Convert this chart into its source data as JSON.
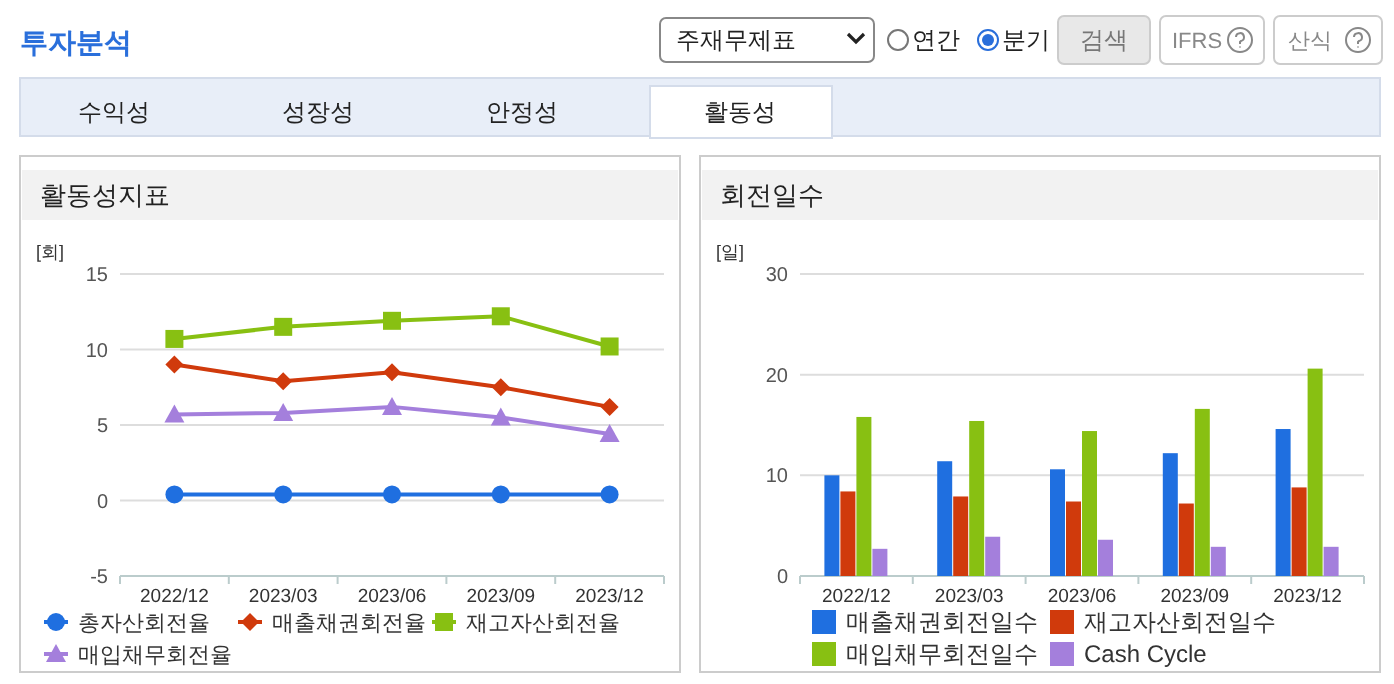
{
  "chart_data": [
    {
      "type": "line",
      "title": "활동성지표",
      "ylabel": "[회]",
      "categories": [
        "2022/12",
        "2023/03",
        "2023/06",
        "2023/09",
        "2023/12"
      ],
      "ylim": [
        -5,
        15
      ],
      "yticks": [
        -5,
        0,
        5,
        10,
        15
      ],
      "grid": "y",
      "legend": "bottom",
      "annotations": [
        "투자분석",
        "주재무제표",
        "연간",
        "분기",
        "검색",
        "IFRS",
        "산식",
        "수익성",
        "성장성",
        "안정성",
        "활동성"
      ],
      "series": [
        {
          "name": "총자산회전율",
          "color": "#1f6fe0",
          "marker": "circle",
          "values": [
            0.4,
            0.4,
            0.4,
            0.4,
            0.4
          ]
        },
        {
          "name": "매출채권회전율",
          "color": "#d03a0c",
          "marker": "diamond",
          "values": [
            9.0,
            7.9,
            8.5,
            7.5,
            6.2
          ]
        },
        {
          "name": "재고자산회전율",
          "color": "#88c012",
          "marker": "square",
          "values": [
            10.7,
            11.5,
            11.9,
            12.2,
            10.2
          ]
        },
        {
          "name": "매입채무회전율",
          "color": "#a47fdc",
          "marker": "triangle",
          "values": [
            5.7,
            5.8,
            6.2,
            5.5,
            4.4
          ]
        }
      ]
    },
    {
      "type": "bar",
      "title": "회전일수",
      "ylabel": "[일]",
      "categories": [
        "2022/12",
        "2023/03",
        "2023/06",
        "2023/09",
        "2023/12"
      ],
      "ylim": [
        0,
        30
      ],
      "yticks": [
        0,
        10,
        20,
        30
      ],
      "grid": "y",
      "legend": "bottom",
      "series": [
        {
          "name": "매출채권회전일수",
          "color": "#1f6fe0",
          "values": [
            10.0,
            11.4,
            10.6,
            12.2,
            14.6
          ]
        },
        {
          "name": "재고자산회전일수",
          "color": "#d03a0c",
          "values": [
            8.4,
            7.9,
            7.4,
            7.2,
            8.8
          ]
        },
        {
          "name": "매입채무회전일수",
          "color": "#88c012",
          "values": [
            15.8,
            15.4,
            14.4,
            16.6,
            20.6
          ]
        },
        {
          "name": "Cash Cycle",
          "color": "#a47fdc",
          "values": [
            2.7,
            3.9,
            3.6,
            2.9,
            2.9
          ]
        }
      ]
    }
  ]
}
